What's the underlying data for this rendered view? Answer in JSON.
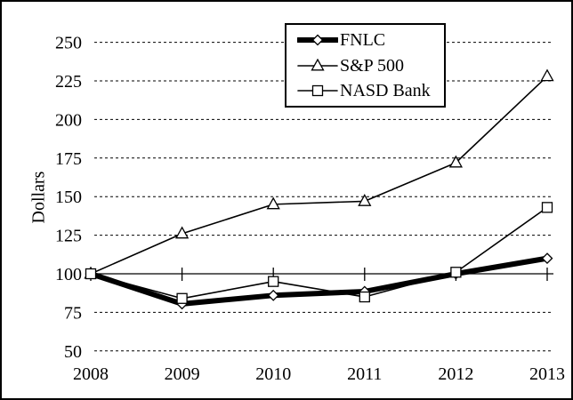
{
  "window": {
    "background": "#ffffff",
    "border_color": "#000000",
    "foreground": "#000000",
    "marker_fill": "#ffffff"
  },
  "chart_data": {
    "type": "line",
    "title": "",
    "ylabel": "Dollars",
    "xlabel": "",
    "categories": [
      "2008",
      "2009",
      "2010",
      "2011",
      "2012",
      "2013"
    ],
    "series": [
      {
        "name": "FNLC",
        "marker": "diamond",
        "line_width": 6,
        "color": "#000000",
        "values": [
          100,
          80.5,
          86,
          88.5,
          100,
          110
        ]
      },
      {
        "name": "S&P 500",
        "marker": "triangle",
        "line_width": 1.6,
        "color": "#000000",
        "values": [
          100,
          126,
          145,
          147,
          172,
          228
        ]
      },
      {
        "name": "NASD Bank",
        "marker": "square",
        "line_width": 1.6,
        "color": "#000000",
        "values": [
          100,
          84,
          95,
          85,
          101,
          143
        ]
      }
    ],
    "ylim": [
      50,
      250
    ],
    "yticks": [
      50,
      75,
      100,
      125,
      150,
      175,
      200,
      225,
      250
    ],
    "baseline": 100,
    "grid": "horizontal-dashed",
    "legend_position": "top-center-inside"
  }
}
